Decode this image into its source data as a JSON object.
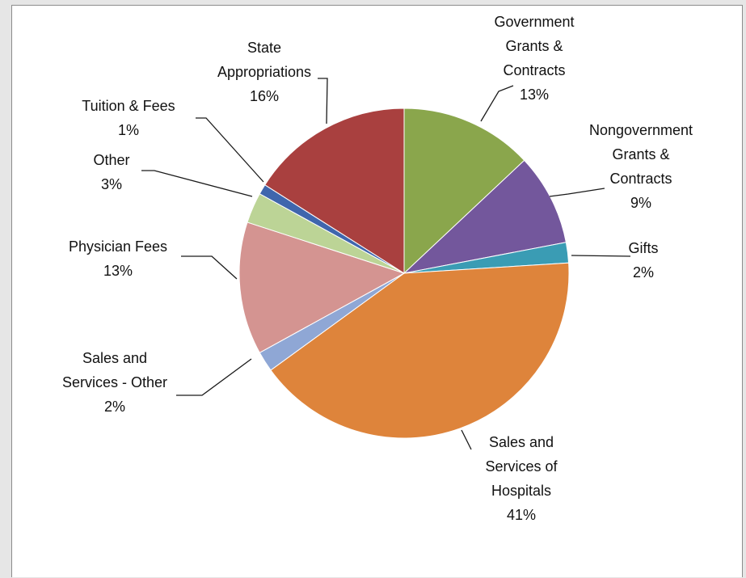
{
  "chart_data": {
    "type": "pie",
    "title": "",
    "legend": "none",
    "categories": [
      "Government Grants & Contracts",
      "Nongovernment Grants & Contracts",
      "Gifts",
      "Sales and Services of Hospitals",
      "Sales and Services - Other",
      "Physician Fees",
      "Other",
      "Tuition & Fees",
      "State Appropriations"
    ],
    "values": [
      13,
      9,
      2,
      41,
      2,
      13,
      3,
      1,
      16
    ],
    "slices": [
      {
        "lines": [
          "Government",
          "Grants &",
          "Contracts"
        ],
        "pct": "13%",
        "value": 13,
        "color": "#8aa64c"
      },
      {
        "lines": [
          "Nongovernment",
          "Grants &",
          "Contracts"
        ],
        "pct": "9%",
        "value": 9,
        "color": "#73579c"
      },
      {
        "lines": [
          "Gifts"
        ],
        "pct": "2%",
        "value": 2,
        "color": "#3a9cb4"
      },
      {
        "lines": [
          "Sales and",
          "Services of",
          "Hospitals"
        ],
        "pct": "41%",
        "value": 41,
        "color": "#de843b"
      },
      {
        "lines": [
          "Sales and",
          "Services - Other"
        ],
        "pct": "2%",
        "value": 2,
        "color": "#8fa7d5"
      },
      {
        "lines": [
          "Physician  Fees"
        ],
        "pct": "13%",
        "value": 13,
        "color": "#d49491"
      },
      {
        "lines": [
          "Other"
        ],
        "pct": "3%",
        "value": 3,
        "color": "#bcd496"
      },
      {
        "lines": [
          "Tuition & Fees"
        ],
        "pct": "1%",
        "value": 1,
        "color": "#3f66ad"
      },
      {
        "lines": [
          "State",
          "Appropriations"
        ],
        "pct": "16%",
        "value": 16,
        "color": "#a9403f"
      }
    ]
  }
}
